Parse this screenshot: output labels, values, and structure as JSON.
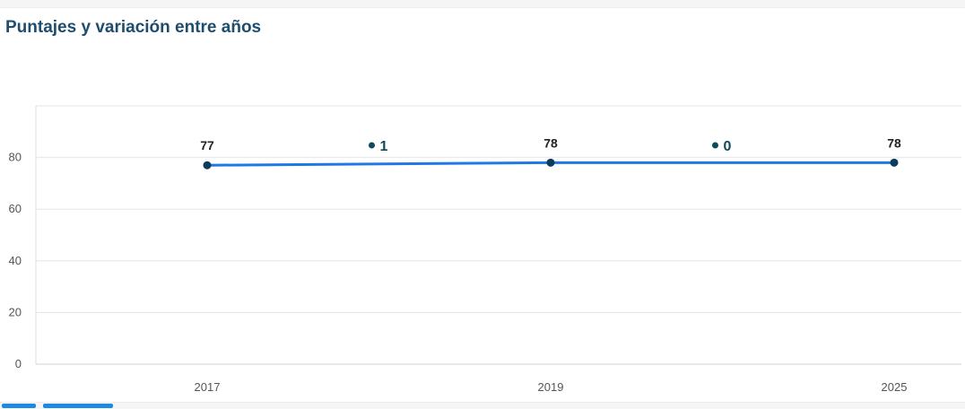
{
  "card": {
    "title": "Puntajes y variación entre años"
  },
  "colors": {
    "title": "#1e4d6e",
    "line": "#1f77e8",
    "point": "#0d3b5c",
    "variation": "#0d4a5a",
    "grid": "#e6e6e6",
    "tick": "#555555"
  },
  "chart_data": {
    "type": "line",
    "title": "",
    "xlabel": "",
    "ylabel": "",
    "ylim": [
      0,
      100
    ],
    "y_ticks": [
      0,
      20,
      40,
      60,
      80
    ],
    "x": [
      "2017",
      "2019",
      "2025"
    ],
    "series": [
      {
        "values": [
          77,
          78,
          78
        ],
        "data_labels": [
          "77",
          "78",
          "78"
        ]
      }
    ],
    "variations": [
      {
        "between": [
          "2017",
          "2019"
        ],
        "label": "1"
      },
      {
        "between": [
          "2019",
          "2025"
        ],
        "label": "0"
      }
    ],
    "grid": true,
    "legend": "none"
  }
}
